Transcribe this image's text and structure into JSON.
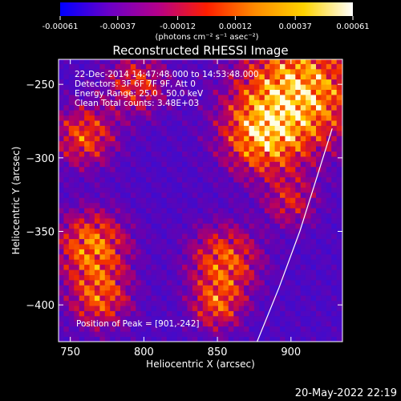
{
  "colorbar": {
    "tick_labels": [
      "-0.00061",
      "-0.00037",
      "-0.00012",
      "0.00012",
      "0.00037",
      "0.00061"
    ],
    "units_label": "(photons cm⁻² s⁻¹ asec⁻²)",
    "stops": [
      "#0000ff",
      "#6a00c8",
      "#b4008a",
      "#ff1e00",
      "#ff8c00",
      "#ffd400",
      "#ffffff"
    ]
  },
  "chart_data": {
    "type": "heatmap",
    "title": "Reconstructed RHESSI Image",
    "xlabel": "Heliocentric X (arcsec)",
    "ylabel": "Heliocentric Y (arcsec)",
    "xlim": [
      742,
      935
    ],
    "ylim": [
      -425,
      -233
    ],
    "x_ticks": [
      750,
      800,
      850,
      900
    ],
    "y_ticks": [
      -250,
      -300,
      -350,
      -400
    ],
    "value_range": [
      -0.00061,
      0.00061
    ],
    "annotations": [
      "22-Dec-2014 14:47:48.000 to 14:53:48.000",
      "Detectors: 3F 6F 7F 9F, Att 0",
      "Energy Range: 25.0 - 50.0 keV",
      "Clean    Total counts: 3.48E+03"
    ],
    "peak_label": "Position of Peak = [901,-242]",
    "peak": [
      901,
      -242
    ],
    "limb_curve": [
      [
        877,
        -425
      ],
      [
        892,
        -388
      ],
      [
        906,
        -350
      ],
      [
        918,
        -312
      ],
      [
        928,
        -280
      ]
    ],
    "grid": false
  },
  "footer": {
    "date": "20-May-2022 22:19"
  }
}
